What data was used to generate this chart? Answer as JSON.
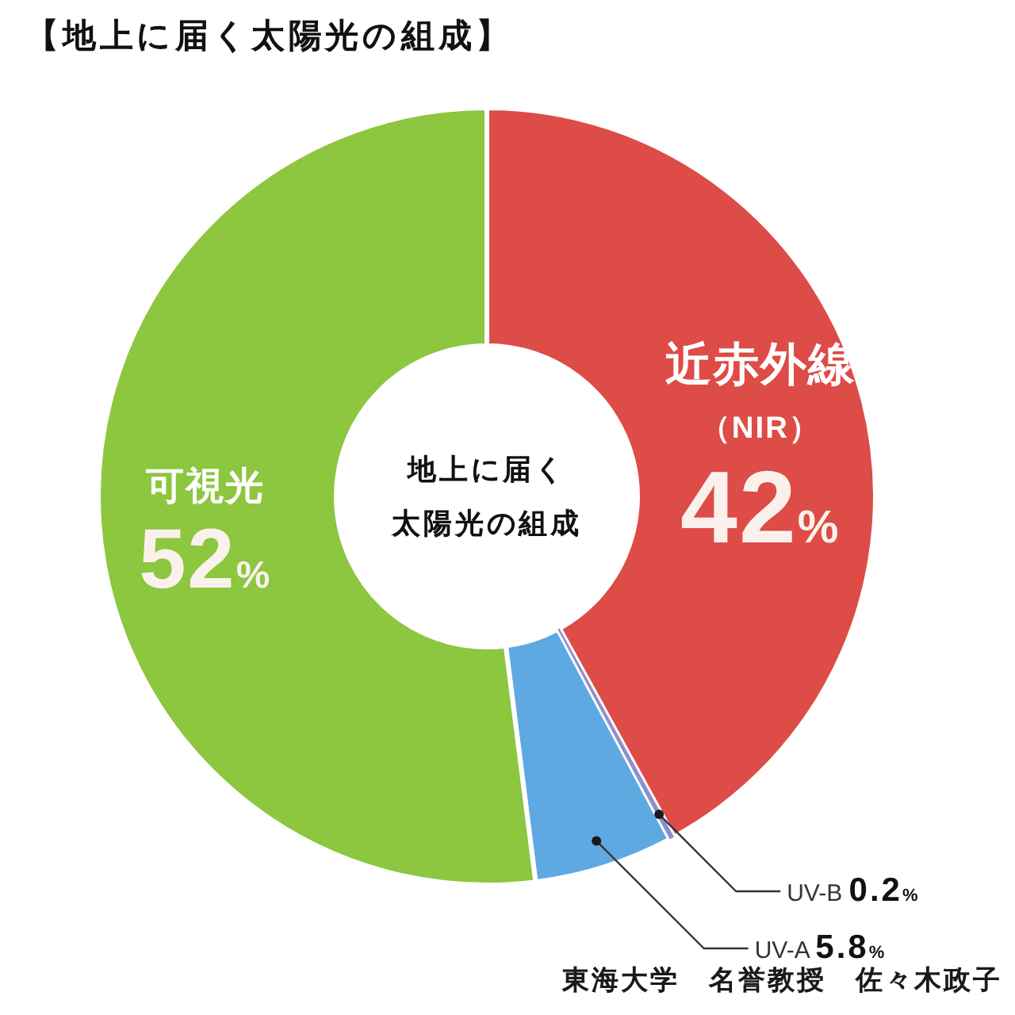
{
  "chart_data": {
    "type": "donut",
    "title": "【地上に届く太陽光の組成】",
    "categories": [
      "近赤外線（NIR）",
      "UV-B",
      "UV-A",
      "可視光"
    ],
    "values": [
      42,
      0.2,
      5.8,
      52
    ],
    "colors": [
      "#dd4c46",
      "#8e8ecf",
      "#5ea9e2",
      "#8dc63f"
    ],
    "value_labels": [
      "42%",
      "0.2%",
      "5.8%",
      "52%"
    ],
    "annotations": [
      "地上に届く太陽光の組成",
      "東海大学　名誉教授　佐々木政子"
    ]
  }
}
